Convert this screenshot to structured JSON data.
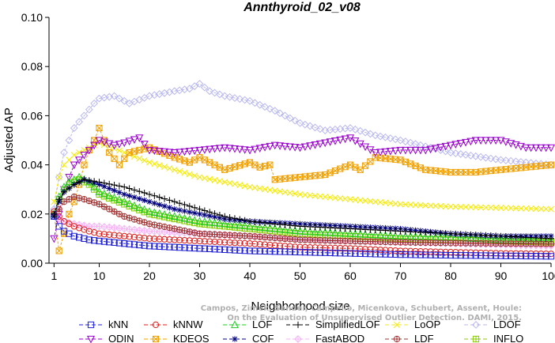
{
  "chart_data": {
    "type": "line",
    "title": "Annthyroid_02_v08",
    "xlabel": "Neighborhood size",
    "ylabel": "Adjusted AP",
    "xlim": [
      0,
      100
    ],
    "ylim": [
      0,
      0.1
    ],
    "xticks": [
      1,
      10,
      20,
      30,
      40,
      50,
      60,
      70,
      80,
      90,
      100
    ],
    "yticks": [
      0.0,
      0.02,
      0.04,
      0.06,
      0.08,
      0.1
    ],
    "ytick_labels": [
      "0.00",
      "0.02",
      "0.04",
      "0.06",
      "0.08",
      "0.10"
    ],
    "grid": false,
    "legend_position": "bottom",
    "watermark": [
      "Campos, Zimek, Sander, Campello, Micenkova, Schubert, Assent, Houle:",
      "On the Evaluation of Unsupervised Outlier Detection. DAMI, 2015."
    ],
    "series": [
      {
        "name": "kNN",
        "color": "#1f1fd6",
        "marker": "square",
        "x": [
          1,
          2,
          3,
          5,
          8,
          10,
          15,
          20,
          30,
          40,
          50,
          60,
          70,
          80,
          90,
          100
        ],
        "y": [
          0.019,
          0.015,
          0.013,
          0.011,
          0.0095,
          0.009,
          0.008,
          0.007,
          0.006,
          0.005,
          0.0045,
          0.004,
          0.0035,
          0.0032,
          0.003,
          0.0028
        ]
      },
      {
        "name": "kNNW",
        "color": "#e01b1b",
        "marker": "circle",
        "x": [
          1,
          2,
          3,
          5,
          8,
          10,
          15,
          20,
          30,
          40,
          50,
          60,
          70,
          80,
          90,
          100
        ],
        "y": [
          0.021,
          0.019,
          0.017,
          0.015,
          0.013,
          0.012,
          0.011,
          0.01,
          0.009,
          0.008,
          0.0065,
          0.006,
          0.005,
          0.0045,
          0.004,
          0.0038
        ]
      },
      {
        "name": "LOF",
        "color": "#22cc22",
        "marker": "triangle",
        "x": [
          1,
          2,
          3,
          4,
          6,
          8,
          10,
          15,
          20,
          25,
          30,
          40,
          50,
          60,
          70,
          80,
          90,
          100
        ],
        "y": [
          0.02,
          0.027,
          0.031,
          0.033,
          0.035,
          0.033,
          0.029,
          0.025,
          0.021,
          0.019,
          0.017,
          0.015,
          0.013,
          0.012,
          0.011,
          0.0105,
          0.0095,
          0.009
        ]
      },
      {
        "name": "SimplifiedLOF",
        "color": "#000000",
        "marker": "plus",
        "x": [
          1,
          2,
          3,
          5,
          7,
          10,
          15,
          20,
          25,
          30,
          35,
          40,
          50,
          60,
          70,
          80,
          90,
          100
        ],
        "y": [
          0.02,
          0.026,
          0.029,
          0.032,
          0.034,
          0.033,
          0.031,
          0.028,
          0.025,
          0.022,
          0.019,
          0.017,
          0.015,
          0.014,
          0.013,
          0.012,
          0.011,
          0.01
        ]
      },
      {
        "name": "LoOP",
        "color": "#f5ea00",
        "marker": "x",
        "x": [
          1,
          2,
          3,
          5,
          8,
          10,
          15,
          20,
          25,
          30,
          40,
          50,
          60,
          70,
          80,
          90,
          100
        ],
        "y": [
          0.025,
          0.035,
          0.04,
          0.044,
          0.047,
          0.049,
          0.045,
          0.041,
          0.038,
          0.035,
          0.031,
          0.028,
          0.026,
          0.024,
          0.023,
          0.0225,
          0.022
        ]
      },
      {
        "name": "LDOF",
        "color": "#b8b8f0",
        "marker": "diamond",
        "x": [
          1,
          2,
          3,
          5,
          7,
          9,
          10,
          13,
          16,
          20,
          25,
          28,
          30,
          32,
          35,
          40,
          45,
          50,
          55,
          60,
          65,
          70,
          80,
          90,
          100
        ],
        "y": [
          0.022,
          0.035,
          0.045,
          0.055,
          0.06,
          0.065,
          0.067,
          0.068,
          0.065,
          0.068,
          0.07,
          0.071,
          0.073,
          0.07,
          0.068,
          0.066,
          0.062,
          0.057,
          0.054,
          0.055,
          0.052,
          0.05,
          0.045,
          0.042,
          0.04
        ]
      },
      {
        "name": "ODIN",
        "color": "#9900cc",
        "marker": "invtriangle",
        "x": [
          1,
          2,
          3,
          5,
          8,
          10,
          13,
          15,
          18,
          20,
          25,
          30,
          35,
          40,
          45,
          50,
          55,
          60,
          65,
          70,
          75,
          80,
          85,
          90,
          95,
          100
        ],
        "y": [
          0.01,
          0.02,
          0.03,
          0.04,
          0.046,
          0.05,
          0.048,
          0.049,
          0.051,
          0.046,
          0.045,
          0.046,
          0.047,
          0.046,
          0.048,
          0.047,
          0.049,
          0.051,
          0.045,
          0.046,
          0.046,
          0.048,
          0.05,
          0.05,
          0.047,
          0.047
        ]
      },
      {
        "name": "KDEOS",
        "color": "#f0a000",
        "marker": "boxx",
        "x": [
          1,
          2,
          3,
          4,
          5,
          6,
          7,
          8,
          9,
          10,
          12,
          14,
          16,
          18,
          20,
          25,
          28,
          30,
          33,
          35,
          40,
          42,
          44,
          45,
          50,
          55,
          60,
          62,
          65,
          70,
          75,
          80,
          85,
          90,
          95,
          100
        ],
        "y": [
          0.02,
          0.005,
          0.012,
          0.02,
          0.025,
          0.032,
          0.04,
          0.046,
          0.05,
          0.055,
          0.045,
          0.04,
          0.045,
          0.046,
          0.047,
          0.043,
          0.041,
          0.043,
          0.04,
          0.038,
          0.041,
          0.039,
          0.04,
          0.034,
          0.035,
          0.036,
          0.04,
          0.038,
          0.043,
          0.042,
          0.038,
          0.037,
          0.037,
          0.038,
          0.039,
          0.04
        ]
      },
      {
        "name": "COF",
        "color": "#000080",
        "marker": "star",
        "x": [
          1,
          2,
          3,
          5,
          7,
          10,
          15,
          20,
          25,
          30,
          35,
          40,
          50,
          60,
          70,
          80,
          90,
          100
        ],
        "y": [
          0.019,
          0.025,
          0.029,
          0.032,
          0.034,
          0.032,
          0.028,
          0.025,
          0.022,
          0.02,
          0.018,
          0.017,
          0.016,
          0.015,
          0.014,
          0.012,
          0.011,
          0.011
        ]
      },
      {
        "name": "FastABOD",
        "color": "#f5b5f5",
        "marker": "diamondplus",
        "x": [
          1,
          2,
          3,
          5,
          8,
          10,
          15,
          20,
          30,
          40,
          50,
          60,
          70,
          80,
          90,
          100
        ],
        "y": [
          0.02,
          0.018,
          0.017,
          0.016,
          0.015,
          0.015,
          0.014,
          0.013,
          0.012,
          0.011,
          0.01,
          0.009,
          0.0085,
          0.008,
          0.0075,
          0.007
        ]
      },
      {
        "name": "LDF",
        "color": "#a03030",
        "marker": "circleplus",
        "x": [
          1,
          2,
          3,
          5,
          7,
          10,
          15,
          20,
          25,
          30,
          40,
          50,
          60,
          70,
          80,
          90,
          100
        ],
        "y": [
          0.02,
          0.022,
          0.025,
          0.027,
          0.026,
          0.024,
          0.019,
          0.016,
          0.014,
          0.012,
          0.011,
          0.0095,
          0.009,
          0.0085,
          0.0082,
          0.008,
          0.0078
        ]
      },
      {
        "name": "INFLO",
        "color": "#88cc00",
        "marker": "boxplus",
        "x": [
          1,
          2,
          3,
          4,
          6,
          8,
          10,
          15,
          20,
          25,
          30,
          40,
          50,
          60,
          70,
          80,
          90,
          100
        ],
        "y": [
          0.019,
          0.026,
          0.03,
          0.032,
          0.034,
          0.032,
          0.028,
          0.024,
          0.02,
          0.018,
          0.016,
          0.014,
          0.012,
          0.011,
          0.01,
          0.0095,
          0.009,
          0.0085
        ]
      }
    ],
    "legend_order": [
      "kNN",
      "kNNW",
      "LOF",
      "SimplifiedLOF",
      "LoOP",
      "LDOF",
      "ODIN",
      "KDEOS",
      "COF",
      "FastABOD",
      "LDF",
      "INFLO"
    ]
  }
}
